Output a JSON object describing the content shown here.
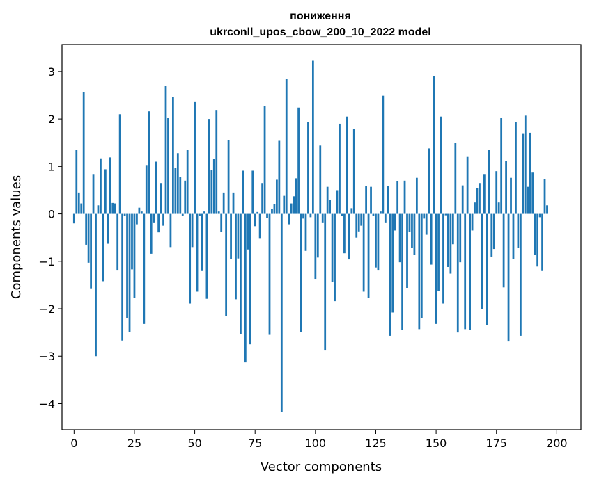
{
  "chart_data": {
    "type": "bar",
    "title": "пониження",
    "subtitle": "ukrconll_upos_cbow_200_10_2022 model",
    "xlabel": "Vector components",
    "ylabel": "Components values",
    "xlim": [
      -5,
      210
    ],
    "ylim": [
      -4.55,
      3.57
    ],
    "x_ticks": [
      0,
      25,
      50,
      75,
      100,
      125,
      150,
      175,
      200
    ],
    "x_tick_labels": [
      "0",
      "25",
      "50",
      "75",
      "100",
      "125",
      "150",
      "175",
      "200"
    ],
    "y_ticks": [
      -4,
      -3,
      -2,
      -1,
      0,
      1,
      2,
      3
    ],
    "y_tick_labels": [
      "−4",
      "−3",
      "−2",
      "−1",
      "0",
      "1",
      "2",
      "3"
    ],
    "bar_color": "#1f77b4",
    "grid": false,
    "values": [
      -0.2,
      1.35,
      0.45,
      0.22,
      2.56,
      -0.65,
      -1.03,
      -1.57,
      0.84,
      -3.0,
      0.18,
      1.17,
      -1.42,
      0.94,
      -0.63,
      1.19,
      0.23,
      0.22,
      -1.18,
      2.1,
      -2.67,
      -0.05,
      -2.19,
      -2.49,
      -1.17,
      -1.77,
      -0.22,
      0.13,
      0.05,
      -2.32,
      1.03,
      2.16,
      -0.84,
      -0.18,
      1.1,
      -0.39,
      0.65,
      -0.25,
      2.7,
      2.03,
      -0.7,
      2.47,
      0.97,
      1.28,
      0.78,
      -0.05,
      0.7,
      1.35,
      -1.89,
      -0.7,
      2.37,
      -1.64,
      -0.05,
      -1.19,
      0.05,
      -1.79,
      2.0,
      0.92,
      1.16,
      2.19,
      0.05,
      -0.38,
      0.45,
      -2.16,
      1.56,
      -0.95,
      0.45,
      -1.8,
      -0.94,
      -2.53,
      0.91,
      -3.13,
      -0.75,
      -2.75,
      0.91,
      -0.26,
      0.04,
      -0.51,
      0.65,
      2.28,
      -0.08,
      -2.55,
      0.1,
      0.2,
      0.72,
      1.54,
      -4.17,
      0.38,
      2.85,
      -0.22,
      0.22,
      0.37,
      0.75,
      2.24,
      -2.49,
      -0.1,
      -0.78,
      1.94,
      -0.07,
      3.24,
      -1.37,
      -0.92,
      1.44,
      -0.18,
      -2.88,
      0.57,
      0.29,
      -1.44,
      -1.84,
      0.5,
      1.9,
      -0.05,
      -0.83,
      2.05,
      -0.96,
      0.12,
      1.79,
      -0.5,
      -0.37,
      -0.25,
      -1.64,
      0.59,
      -1.77,
      0.57,
      -0.05,
      -1.13,
      -1.18,
      0.05,
      2.49,
      -0.18,
      0.59,
      -2.57,
      -2.08,
      -0.35,
      0.69,
      -1.02,
      -2.44,
      0.7,
      -1.56,
      -0.38,
      -0.71,
      -0.86,
      0.76,
      -2.43,
      -2.2,
      -0.1,
      -0.44,
      1.38,
      -1.07,
      2.9,
      -2.32,
      -1.63,
      2.05,
      -1.89,
      -0.03,
      -1.12,
      -1.26,
      -0.64,
      1.5,
      -2.5,
      -1.02,
      0.6,
      -2.43,
      1.2,
      -2.44,
      -0.35,
      0.24,
      0.55,
      0.65,
      -2.0,
      0.84,
      -2.34,
      1.35,
      -0.9,
      -0.74,
      0.9,
      0.24,
      2.02,
      -1.55,
      1.12,
      -2.69,
      0.76,
      -0.95,
      1.93,
      -0.72,
      -2.57,
      1.7,
      2.07,
      0.57,
      1.71,
      0.87,
      -0.87,
      -1.11,
      -0.07,
      -1.19,
      0.73,
      0.18
    ]
  }
}
